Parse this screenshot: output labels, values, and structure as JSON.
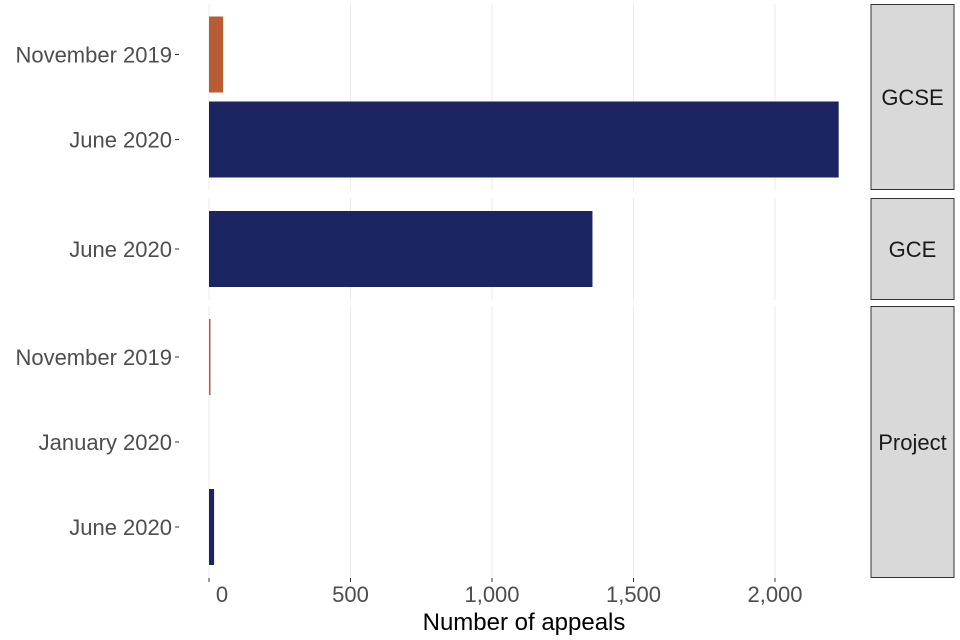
{
  "chart_data": {
    "type": "bar",
    "orientation": "horizontal",
    "xlabel": "Number of appeals",
    "xlim": [
      0,
      2250
    ],
    "x_ticks": [
      0,
      500,
      1000,
      1500,
      2000
    ],
    "x_tick_labels": [
      "0",
      "500",
      "1,000",
      "1,500",
      "2,000"
    ],
    "grid": true,
    "colors": {
      "November 2019": "#b95c33",
      "January 2020": "#b95c33",
      "June 2020": "#1c2561"
    },
    "panels": [
      {
        "name": "GCSE",
        "bars": [
          {
            "category": "November 2019",
            "value": 50
          },
          {
            "category": "June 2020",
            "value": 2225
          }
        ]
      },
      {
        "name": "GCE",
        "bars": [
          {
            "category": "June 2020",
            "value": 1355
          }
        ]
      },
      {
        "name": "Project",
        "bars": [
          {
            "category": "November 2019",
            "value": 3
          },
          {
            "category": "January 2020",
            "value": 0
          },
          {
            "category": "June 2020",
            "value": 18
          }
        ]
      }
    ]
  }
}
